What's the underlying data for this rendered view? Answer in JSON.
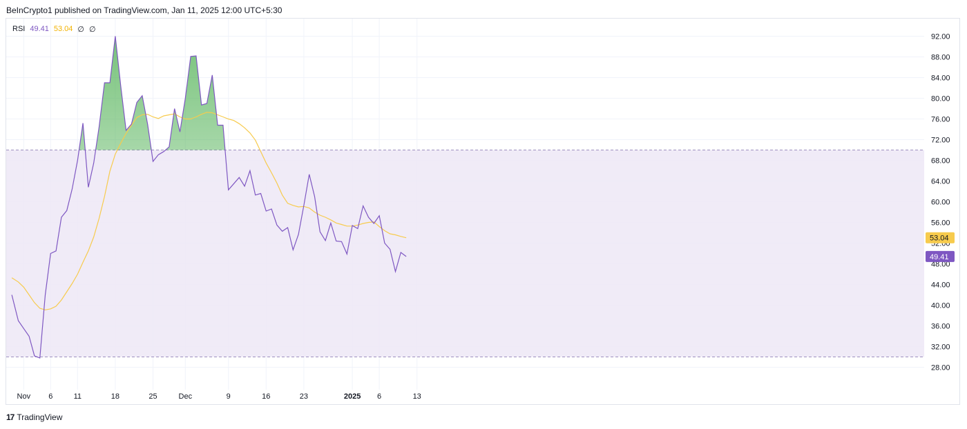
{
  "header": {
    "published": "BeInCrypto1 published on TradingView.com, Jan 11, 2025 12:00 UTC+5:30"
  },
  "legend": {
    "name": "RSI",
    "rsi_value": "49.41",
    "ma_value": "53.04",
    "null1": "∅",
    "null2": "∅"
  },
  "footer": {
    "logo": "17",
    "brand": "TradingView"
  },
  "colors": {
    "rsi": "#7e57c2",
    "ma": "#f7cb4d",
    "band": "#ede7f6",
    "overbought_fill": "#4caf50"
  },
  "chart_data": {
    "type": "line",
    "ylim": [
      24,
      95
    ],
    "y_ticks": [
      "92.00",
      "88.00",
      "84.00",
      "80.00",
      "76.00",
      "72.00",
      "68.00",
      "64.00",
      "60.00",
      "56.00",
      "52.00",
      "48.00",
      "44.00",
      "40.00",
      "36.00",
      "32.00",
      "28.00"
    ],
    "x_ticks": [
      {
        "label": "Nov",
        "day": 1,
        "bold": false
      },
      {
        "label": "6",
        "day": 6,
        "bold": false
      },
      {
        "label": "11",
        "day": 11,
        "bold": false
      },
      {
        "label": "18",
        "day": 18,
        "bold": false
      },
      {
        "label": "25",
        "day": 25,
        "bold": false
      },
      {
        "label": "Dec",
        "day": 31,
        "bold": false
      },
      {
        "label": "9",
        "day": 39,
        "bold": false
      },
      {
        "label": "16",
        "day": 46,
        "bold": false
      },
      {
        "label": "23",
        "day": 53,
        "bold": false
      },
      {
        "label": "2025",
        "day": 62,
        "bold": true
      },
      {
        "label": "6",
        "day": 67,
        "bold": false
      },
      {
        "label": "13",
        "day": 74,
        "bold": false
      }
    ],
    "bands": {
      "upper": 70,
      "lower": 30
    },
    "badges": [
      {
        "label": "53.04",
        "value": 53.04,
        "color": "#f7cb4d",
        "dark_text": true
      },
      {
        "label": "49.41",
        "value": 49.41,
        "color": "#7e57c2",
        "dark_text": false
      }
    ],
    "series": [
      {
        "name": "RSI",
        "x": [
          -1.2,
          0,
          1,
          2,
          3,
          4,
          5,
          6,
          7,
          8,
          9,
          10,
          11,
          12,
          13,
          14,
          15,
          16,
          17,
          18,
          19,
          20,
          21,
          22,
          23,
          24,
          25,
          26,
          27,
          28,
          29,
          30,
          31,
          32,
          33,
          34,
          35,
          36,
          37,
          38,
          39,
          40,
          41,
          42,
          43,
          44,
          45,
          46,
          47,
          48,
          49,
          50,
          51,
          52,
          53,
          54,
          55,
          56,
          57,
          58,
          59,
          60,
          61,
          62,
          63,
          64,
          65,
          66,
          67,
          68,
          69,
          70,
          71,
          72
        ],
        "values": [
          42,
          37,
          35.5,
          34,
          30.2,
          29.8,
          42,
          50,
          50.5,
          57,
          58.3,
          62.5,
          68,
          75.2,
          62.8,
          67.5,
          74.5,
          83,
          83,
          92,
          82.5,
          73.8,
          75,
          79.2,
          80.5,
          75,
          67.8,
          69.1,
          69.7,
          70.6,
          78,
          73.5,
          80,
          88.1,
          88.2,
          78.7,
          79,
          84.5,
          74.8,
          74.8,
          62.3,
          63.5,
          64.7,
          63,
          66,
          61.3,
          61.6,
          58.2,
          58.6,
          55.5,
          54.3,
          55,
          50.7,
          53.7,
          59.3,
          65.3,
          61,
          54.2,
          52.5,
          55.9,
          52.4,
          52.3,
          49.9,
          55.4,
          54.8,
          59.2,
          57,
          55.8,
          57.3,
          52,
          50.8,
          46.5,
          50.2,
          49.41
        ]
      },
      {
        "name": "RSI-based MA",
        "x": [
          -1.2,
          0,
          1,
          2,
          3,
          4,
          5,
          6,
          7,
          8,
          9,
          10,
          11,
          12,
          13,
          14,
          15,
          16,
          17,
          18,
          19,
          20,
          21,
          22,
          23,
          24,
          25,
          26,
          27,
          28,
          29,
          30,
          31,
          32,
          33,
          34,
          35,
          36,
          37,
          38,
          39,
          40,
          41,
          42,
          43,
          44,
          45,
          46,
          47,
          48,
          49,
          50,
          51,
          52,
          53,
          54,
          55,
          56,
          57,
          58,
          59,
          60,
          61,
          62,
          63,
          64,
          65,
          66,
          67,
          68,
          69,
          70,
          71,
          72
        ],
        "values": [
          45.3,
          44.5,
          43.5,
          42,
          40.5,
          39.4,
          39.1,
          39.3,
          39.8,
          41,
          42.6,
          44.2,
          46,
          48.3,
          50.5,
          53.2,
          56.8,
          61,
          65.9,
          69.2,
          71.3,
          73.2,
          74.8,
          76.3,
          76.8,
          76.9,
          76.4,
          76.1,
          76.6,
          76.8,
          77,
          76.4,
          76,
          76,
          76.4,
          76.9,
          77.3,
          77.2,
          76.8,
          76.4,
          76,
          75.7,
          75.1,
          74.3,
          73.3,
          71.9,
          69.7,
          67.5,
          65.6,
          63.6,
          61.3,
          59.7,
          59.3,
          59,
          59.1,
          58.8,
          58,
          57.4,
          57,
          56.5,
          55.9,
          55.6,
          55.3,
          55.3,
          55.5,
          55.8,
          56,
          56.1,
          55.2,
          54.4,
          53.8,
          53.6,
          53.3,
          53.04
        ]
      }
    ]
  }
}
